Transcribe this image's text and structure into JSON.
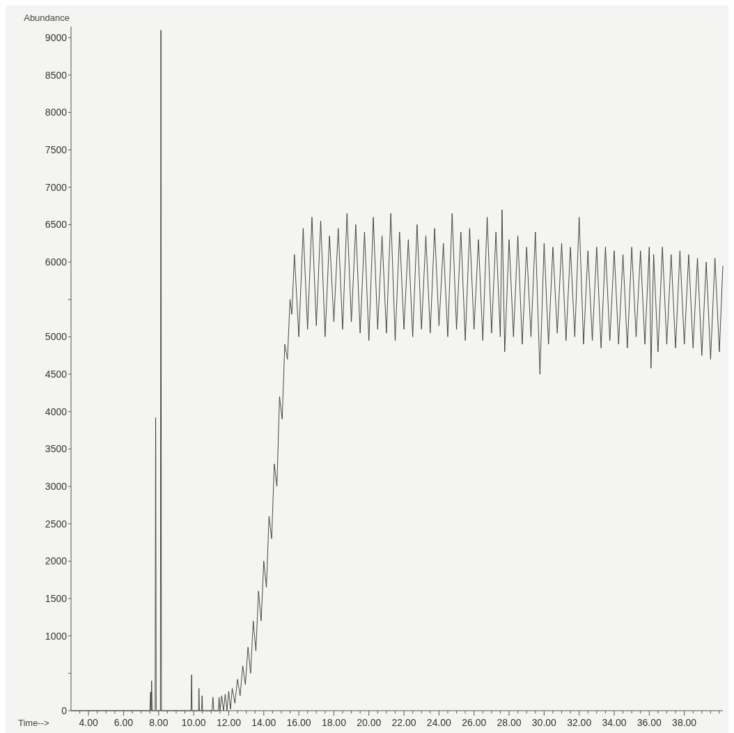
{
  "chart_data": {
    "type": "line",
    "xlabel": "Time-->",
    "ylabel": "Abundance",
    "xlim": [
      3,
      40.2
    ],
    "ylim": [
      0,
      9150
    ],
    "xticks": [
      {
        "value": 3.5,
        "label": null
      },
      {
        "value": 4,
        "label": "4.00"
      },
      {
        "value": 4.5,
        "label": null
      },
      {
        "value": 5,
        "label": null
      },
      {
        "value": 5.5,
        "label": null
      },
      {
        "value": 6,
        "label": "6.00"
      },
      {
        "value": 6.5,
        "label": null
      },
      {
        "value": 7,
        "label": null
      },
      {
        "value": 7.5,
        "label": null
      },
      {
        "value": 8,
        "label": "8.00"
      },
      {
        "value": 8.5,
        "label": null
      },
      {
        "value": 9,
        "label": null
      },
      {
        "value": 9.5,
        "label": null
      },
      {
        "value": 10,
        "label": "10.00"
      },
      {
        "value": 10.5,
        "label": null
      },
      {
        "value": 11,
        "label": null
      },
      {
        "value": 11.5,
        "label": null
      },
      {
        "value": 12,
        "label": "12.00"
      },
      {
        "value": 12.5,
        "label": null
      },
      {
        "value": 13,
        "label": null
      },
      {
        "value": 13.5,
        "label": null
      },
      {
        "value": 14,
        "label": "14.00"
      },
      {
        "value": 14.5,
        "label": null
      },
      {
        "value": 15,
        "label": null
      },
      {
        "value": 15.5,
        "label": null
      },
      {
        "value": 16,
        "label": "16.00"
      },
      {
        "value": 16.5,
        "label": null
      },
      {
        "value": 17,
        "label": null
      },
      {
        "value": 17.5,
        "label": null
      },
      {
        "value": 18,
        "label": "18.00"
      },
      {
        "value": 18.5,
        "label": null
      },
      {
        "value": 19,
        "label": null
      },
      {
        "value": 19.5,
        "label": null
      },
      {
        "value": 20,
        "label": "20.00"
      },
      {
        "value": 20.5,
        "label": null
      },
      {
        "value": 21,
        "label": null
      },
      {
        "value": 21.5,
        "label": null
      },
      {
        "value": 22,
        "label": "22.00"
      },
      {
        "value": 22.5,
        "label": null
      },
      {
        "value": 23,
        "label": null
      },
      {
        "value": 23.5,
        "label": null
      },
      {
        "value": 24,
        "label": "24.00"
      },
      {
        "value": 24.5,
        "label": null
      },
      {
        "value": 25,
        "label": null
      },
      {
        "value": 25.5,
        "label": null
      },
      {
        "value": 26,
        "label": "26.00"
      },
      {
        "value": 26.5,
        "label": null
      },
      {
        "value": 27,
        "label": null
      },
      {
        "value": 27.5,
        "label": null
      },
      {
        "value": 28,
        "label": "28.00"
      },
      {
        "value": 28.5,
        "label": null
      },
      {
        "value": 29,
        "label": null
      },
      {
        "value": 29.5,
        "label": null
      },
      {
        "value": 30,
        "label": "30.00"
      },
      {
        "value": 30.5,
        "label": null
      },
      {
        "value": 31,
        "label": null
      },
      {
        "value": 31.5,
        "label": null
      },
      {
        "value": 32,
        "label": "32.00"
      },
      {
        "value": 32.5,
        "label": null
      },
      {
        "value": 33,
        "label": null
      },
      {
        "value": 33.5,
        "label": null
      },
      {
        "value": 34,
        "label": "34.00"
      },
      {
        "value": 34.5,
        "label": null
      },
      {
        "value": 35,
        "label": null
      },
      {
        "value": 35.5,
        "label": null
      },
      {
        "value": 36,
        "label": "36.00"
      },
      {
        "value": 36.5,
        "label": null
      },
      {
        "value": 37,
        "label": null
      },
      {
        "value": 37.5,
        "label": null
      },
      {
        "value": 38,
        "label": "38.00"
      },
      {
        "value": 38.5,
        "label": null
      },
      {
        "value": 39,
        "label": null
      },
      {
        "value": 39.5,
        "label": null
      },
      {
        "value": 40,
        "label": null
      }
    ],
    "yticks": [
      0,
      {
        "value": 500,
        "label": null
      },
      1000,
      1500,
      2000,
      2500,
      3000,
      3500,
      4000,
      4500,
      5000,
      {
        "value": 5500,
        "label": null
      },
      6000,
      6500,
      7000,
      7500,
      8000,
      8500,
      9000
    ],
    "grid": false,
    "marker": "none",
    "line_style": "solid",
    "series": [
      {
        "color": "#333333",
        "x": [
          3,
          7.5,
          7.54,
          7.57,
          7.6,
          7.63,
          7.8,
          7.83,
          7.86,
          8.1,
          8.13,
          8.16,
          9.85,
          9.88,
          9.91,
          10.28,
          10.3,
          10.33,
          10.45,
          10.48,
          10.51,
          11.05,
          11.1,
          11.15,
          11.4,
          11.45,
          11.5,
          11.6,
          11.7,
          11.8,
          11.9,
          12.0,
          12.1,
          12.2,
          12.35,
          12.5,
          12.65,
          12.8,
          12.95,
          13.1,
          13.25,
          13.4,
          13.55,
          13.7,
          13.85,
          14.0,
          14.15,
          14.3,
          14.45,
          14.6,
          14.75,
          14.9,
          15.05,
          15.2,
          15.35,
          15.5,
          15.6,
          15.75,
          16.0,
          16.25,
          16.5,
          16.75,
          17.0,
          17.25,
          17.5,
          17.75,
          18.0,
          18.25,
          18.5,
          18.75,
          19.0,
          19.25,
          19.5,
          19.75,
          20.0,
          20.25,
          20.5,
          20.75,
          21.0,
          21.25,
          21.5,
          21.75,
          22.0,
          22.25,
          22.5,
          22.75,
          23.0,
          23.25,
          23.5,
          23.75,
          24.0,
          24.25,
          24.5,
          24.75,
          25.0,
          25.25,
          25.5,
          25.75,
          26.0,
          26.25,
          26.5,
          26.75,
          27.0,
          27.25,
          27.5,
          27.6,
          27.75,
          28.0,
          28.25,
          28.5,
          28.75,
          29.0,
          29.25,
          29.5,
          29.76,
          30.0,
          30.25,
          30.5,
          30.75,
          31.0,
          31.25,
          31.5,
          31.75,
          32.0,
          32.25,
          32.5,
          32.75,
          33.0,
          33.25,
          33.5,
          33.75,
          34.0,
          34.25,
          34.5,
          34.75,
          35.0,
          35.25,
          35.5,
          35.75,
          36.0,
          36.1,
          36.25,
          36.5,
          36.75,
          37.0,
          37.25,
          37.5,
          37.75,
          38.0,
          38.25,
          38.5,
          38.75,
          39.0,
          39.25,
          39.5,
          39.75,
          40.0,
          40.2
        ],
        "values": [
          0,
          0,
          250,
          0,
          400,
          0,
          0,
          3920,
          0,
          0,
          9100,
          0,
          0,
          480,
          0,
          0,
          300,
          0,
          0,
          200,
          0,
          0,
          180,
          0,
          0,
          180,
          0,
          200,
          0,
          220,
          0,
          260,
          20,
          300,
          100,
          420,
          200,
          600,
          350,
          850,
          500,
          1200,
          800,
          1600,
          1200,
          2000,
          1650,
          2600,
          2300,
          3300,
          3000,
          4200,
          3900,
          4900,
          4700,
          5500,
          5300,
          6100,
          5000,
          6450,
          5100,
          6600,
          5150,
          6550,
          5000,
          6350,
          5200,
          6450,
          5100,
          6650,
          5200,
          6500,
          5050,
          6400,
          4950,
          6600,
          5100,
          6350,
          5050,
          6650,
          4950,
          6400,
          5100,
          6300,
          5000,
          6500,
          5100,
          6350,
          5050,
          6450,
          5150,
          6250,
          5000,
          6650,
          5100,
          6400,
          4950,
          6450,
          5100,
          6300,
          4950,
          6600,
          5050,
          6400,
          5000,
          6700,
          4800,
          6300,
          5000,
          6350,
          4900,
          6200,
          5000,
          6400,
          4500,
          6250,
          4900,
          6200,
          5050,
          6250,
          4950,
          6200,
          5000,
          6600,
          4900,
          6150,
          4950,
          6200,
          4850,
          6200,
          4950,
          6150,
          4900,
          6100,
          4850,
          6200,
          5000,
          6150,
          4900,
          6200,
          4580,
          6100,
          4800,
          6200,
          4900,
          6100,
          4850,
          6150,
          4900,
          6100,
          4850,
          6050,
          4750,
          6000,
          4700,
          6050,
          4800,
          5950
        ]
      }
    ]
  }
}
